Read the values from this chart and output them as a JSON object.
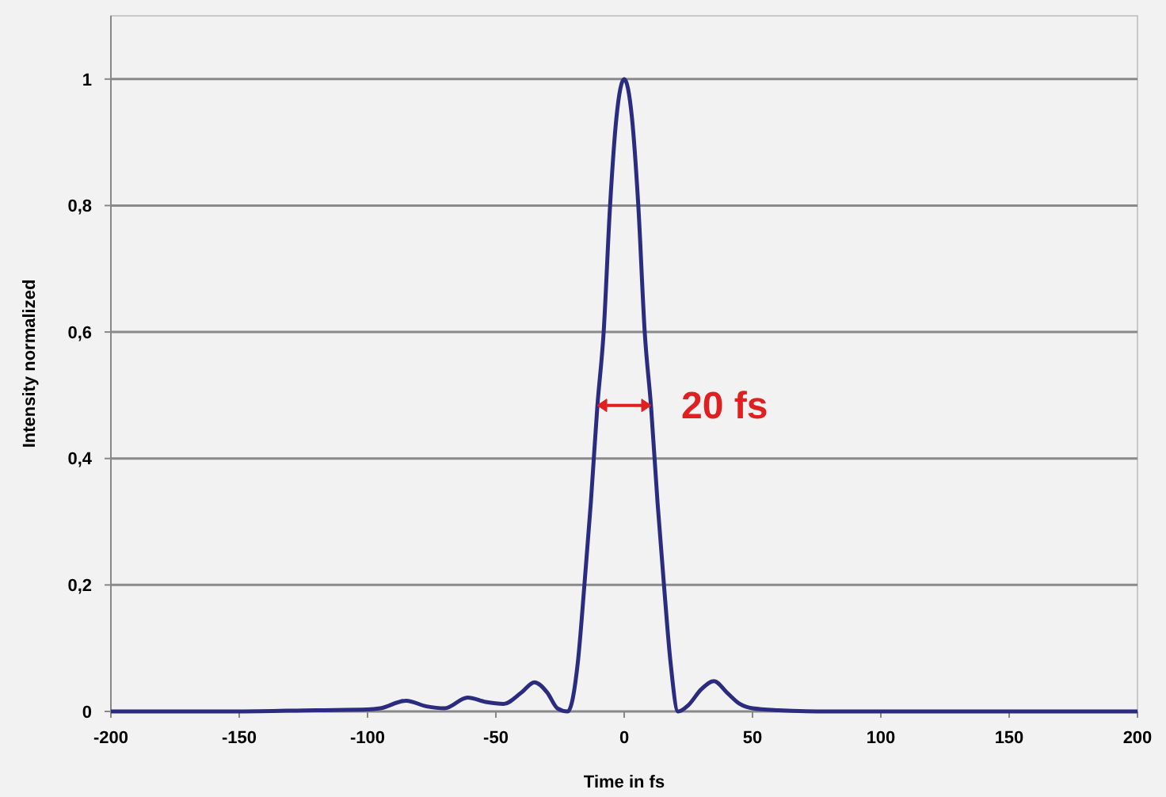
{
  "chart_data": {
    "type": "line",
    "xlabel": "Time in fs",
    "ylabel": "Intensity normalized",
    "annotations": [
      "20 fs"
    ],
    "x": [
      -200,
      -150,
      -120,
      -100,
      -95,
      -85,
      -77,
      -70,
      -61,
      -54,
      -47,
      -40,
      -35,
      -30,
      -26,
      -22,
      -18,
      -15.5,
      -13,
      -10.5,
      -8,
      -5.5,
      -3,
      0,
      3,
      5.5,
      8,
      10.5,
      13,
      15.5,
      18,
      21,
      25,
      30,
      35,
      40,
      45,
      50,
      60,
      80,
      120,
      200
    ],
    "series": [
      {
        "color": "#2b2b80",
        "values": [
          0,
          0,
          0.002,
          0.003,
          0.005,
          0.017,
          0.008,
          0.005,
          0.022,
          0.015,
          0.012,
          0.03,
          0.046,
          0.03,
          0.005,
          0,
          0.08,
          0.2,
          0.33,
          0.48,
          0.6,
          0.8,
          0.94,
          1,
          0.94,
          0.8,
          0.6,
          0.48,
          0.33,
          0.2,
          0.08,
          0,
          0.01,
          0.035,
          0.048,
          0.03,
          0.012,
          0.005,
          0.002,
          0,
          0,
          0
        ]
      }
    ],
    "xlim": [
      -200,
      200
    ],
    "ylim": [
      0,
      1.1
    ],
    "xticks": [
      -200,
      -150,
      -100,
      -50,
      0,
      50,
      100,
      150,
      200
    ],
    "yticks": [
      0,
      {
        "value": 0.2,
        "label": "0,2"
      },
      {
        "value": 0.4,
        "label": "0,4"
      },
      {
        "value": 0.6,
        "label": "0,6"
      },
      {
        "value": 0.8,
        "label": "0,8"
      },
      1
    ],
    "grid": "y",
    "marker": "none",
    "line_style": "solid"
  }
}
